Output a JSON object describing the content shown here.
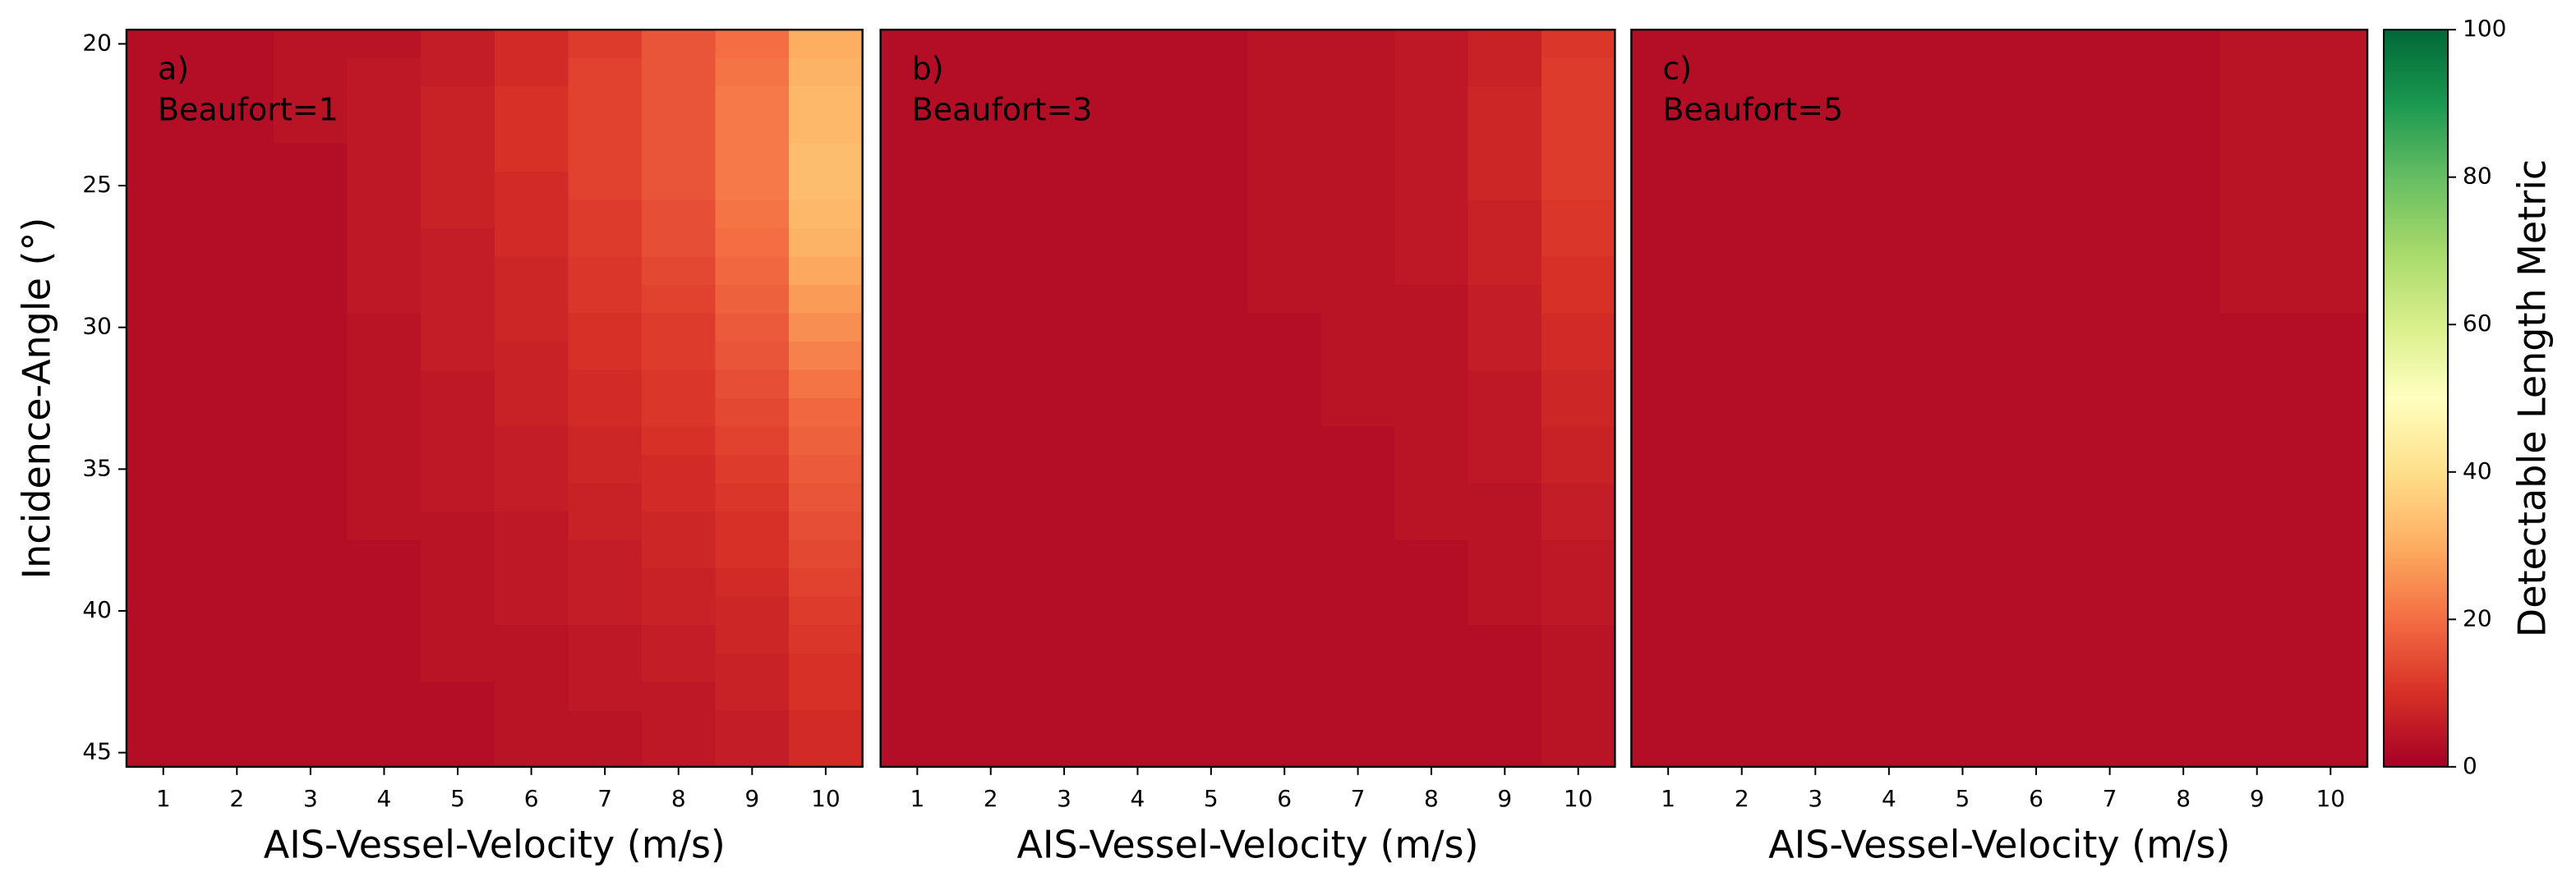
{
  "chart_data": [
    {
      "type": "heatmap",
      "label": "a)",
      "annotation": "Beaufort=1",
      "xlabel": "AIS-Vessel-Velocity (m/s)",
      "ylabel": "Incidence-Angle (°)",
      "x": [
        1,
        2,
        3,
        4,
        5,
        6,
        7,
        8,
        9,
        10
      ],
      "y": [
        20,
        21,
        22,
        23,
        24,
        25,
        26,
        27,
        28,
        29,
        30,
        31,
        32,
        33,
        34,
        35,
        36,
        37,
        38,
        39,
        40,
        41,
        42,
        43,
        44,
        45
      ],
      "xlim": [
        0.5,
        10.5
      ],
      "ylim": [
        45.5,
        19.5
      ],
      "xticks": [
        1,
        2,
        3,
        4,
        5,
        6,
        7,
        8,
        9,
        10
      ],
      "yticks": [
        20,
        25,
        30,
        35,
        40,
        45
      ],
      "z": [
        [
          3,
          3,
          4,
          4,
          6,
          9,
          12,
          16,
          20,
          30
        ],
        [
          3,
          3,
          4,
          5,
          6,
          9,
          13,
          16,
          21,
          31
        ],
        [
          3,
          3,
          4,
          5,
          7,
          10,
          13,
          16,
          22,
          32
        ],
        [
          3,
          3,
          4,
          5,
          7,
          10,
          13,
          16,
          22,
          32
        ],
        [
          3,
          3,
          3,
          5,
          7,
          10,
          13,
          16,
          22,
          33
        ],
        [
          3,
          3,
          3,
          5,
          7,
          9,
          13,
          16,
          22,
          33
        ],
        [
          3,
          3,
          3,
          5,
          7,
          9,
          12,
          15,
          21,
          32
        ],
        [
          3,
          3,
          3,
          5,
          6,
          9,
          12,
          15,
          20,
          31
        ],
        [
          3,
          3,
          3,
          5,
          6,
          8,
          11,
          14,
          19,
          29
        ],
        [
          3,
          3,
          3,
          5,
          6,
          8,
          11,
          13,
          18,
          27
        ],
        [
          3,
          3,
          3,
          4,
          6,
          8,
          10,
          12,
          17,
          25
        ],
        [
          3,
          3,
          3,
          4,
          6,
          7,
          10,
          12,
          16,
          23
        ],
        [
          3,
          3,
          3,
          4,
          5,
          7,
          9,
          11,
          15,
          21
        ],
        [
          3,
          3,
          3,
          4,
          5,
          7,
          9,
          11,
          14,
          19
        ],
        [
          3,
          3,
          3,
          4,
          5,
          6,
          8,
          10,
          13,
          18
        ],
        [
          3,
          3,
          3,
          4,
          5,
          6,
          8,
          9,
          12,
          17
        ],
        [
          3,
          3,
          3,
          4,
          5,
          6,
          7,
          9,
          11,
          16
        ],
        [
          3,
          3,
          3,
          4,
          4,
          5,
          7,
          8,
          10,
          15
        ],
        [
          3,
          3,
          3,
          3,
          4,
          5,
          6,
          8,
          10,
          14
        ],
        [
          3,
          3,
          3,
          3,
          4,
          5,
          6,
          7,
          9,
          13
        ],
        [
          3,
          3,
          3,
          3,
          4,
          5,
          6,
          7,
          8,
          12
        ],
        [
          3,
          3,
          3,
          3,
          4,
          4,
          5,
          6,
          8,
          11
        ],
        [
          3,
          3,
          3,
          3,
          4,
          4,
          5,
          6,
          7,
          10
        ],
        [
          3,
          3,
          3,
          3,
          3,
          4,
          5,
          5,
          7,
          10
        ],
        [
          3,
          3,
          3,
          3,
          3,
          4,
          4,
          5,
          6,
          9
        ],
        [
          3,
          3,
          3,
          3,
          3,
          4,
          4,
          5,
          6,
          9
        ]
      ]
    },
    {
      "type": "heatmap",
      "label": "b)",
      "annotation": "Beaufort=3",
      "xlabel": "AIS-Vessel-Velocity (m/s)",
      "x": [
        1,
        2,
        3,
        4,
        5,
        6,
        7,
        8,
        9,
        10
      ],
      "y": [
        20,
        21,
        22,
        23,
        24,
        25,
        26,
        27,
        28,
        29,
        30,
        31,
        32,
        33,
        34,
        35,
        36,
        37,
        38,
        39,
        40,
        41,
        42,
        43,
        44,
        45
      ],
      "xlim": [
        0.5,
        10.5
      ],
      "ylim": [
        45.5,
        19.5
      ],
      "xticks": [
        1,
        2,
        3,
        4,
        5,
        6,
        7,
        8,
        9,
        10
      ],
      "z": [
        [
          3,
          3,
          3,
          3,
          3,
          4,
          4,
          5,
          7,
          11
        ],
        [
          3,
          3,
          3,
          3,
          3,
          4,
          4,
          5,
          7,
          12
        ],
        [
          3,
          3,
          3,
          3,
          3,
          4,
          4,
          5,
          8,
          12
        ],
        [
          3,
          3,
          3,
          3,
          3,
          4,
          4,
          5,
          8,
          12
        ],
        [
          3,
          3,
          3,
          3,
          3,
          4,
          4,
          5,
          8,
          12
        ],
        [
          3,
          3,
          3,
          3,
          3,
          4,
          4,
          5,
          8,
          12
        ],
        [
          3,
          3,
          3,
          3,
          3,
          4,
          4,
          5,
          7,
          11
        ],
        [
          3,
          3,
          3,
          3,
          3,
          4,
          4,
          5,
          7,
          11
        ],
        [
          3,
          3,
          3,
          3,
          3,
          4,
          4,
          5,
          7,
          10
        ],
        [
          3,
          3,
          3,
          3,
          3,
          4,
          4,
          4,
          6,
          10
        ],
        [
          3,
          3,
          3,
          3,
          3,
          3,
          4,
          4,
          6,
          9
        ],
        [
          3,
          3,
          3,
          3,
          3,
          3,
          4,
          4,
          6,
          9
        ],
        [
          3,
          3,
          3,
          3,
          3,
          3,
          4,
          4,
          5,
          8
        ],
        [
          3,
          3,
          3,
          3,
          3,
          3,
          4,
          4,
          5,
          8
        ],
        [
          3,
          3,
          3,
          3,
          3,
          3,
          3,
          4,
          5,
          7
        ],
        [
          3,
          3,
          3,
          3,
          3,
          3,
          3,
          4,
          5,
          7
        ],
        [
          3,
          3,
          3,
          3,
          3,
          3,
          3,
          4,
          4,
          6
        ],
        [
          3,
          3,
          3,
          3,
          3,
          3,
          3,
          4,
          4,
          6
        ],
        [
          3,
          3,
          3,
          3,
          3,
          3,
          3,
          3,
          4,
          5
        ],
        [
          3,
          3,
          3,
          3,
          3,
          3,
          3,
          3,
          4,
          5
        ],
        [
          3,
          3,
          3,
          3,
          3,
          3,
          3,
          3,
          4,
          5
        ],
        [
          3,
          3,
          3,
          3,
          3,
          3,
          3,
          3,
          3,
          4
        ],
        [
          3,
          3,
          3,
          3,
          3,
          3,
          3,
          3,
          3,
          4
        ],
        [
          3,
          3,
          3,
          3,
          3,
          3,
          3,
          3,
          3,
          4
        ],
        [
          3,
          3,
          3,
          3,
          3,
          3,
          3,
          3,
          3,
          4
        ],
        [
          3,
          3,
          3,
          3,
          3,
          3,
          3,
          3,
          3,
          4
        ]
      ]
    },
    {
      "type": "heatmap",
      "label": "c)",
      "annotation": "Beaufort=5",
      "xlabel": "AIS-Vessel-Velocity (m/s)",
      "x": [
        1,
        2,
        3,
        4,
        5,
        6,
        7,
        8,
        9,
        10
      ],
      "y": [
        20,
        21,
        22,
        23,
        24,
        25,
        26,
        27,
        28,
        29,
        30,
        31,
        32,
        33,
        34,
        35,
        36,
        37,
        38,
        39,
        40,
        41,
        42,
        43,
        44,
        45
      ],
      "xlim": [
        0.5,
        10.5
      ],
      "ylim": [
        45.5,
        19.5
      ],
      "xticks": [
        1,
        2,
        3,
        4,
        5,
        6,
        7,
        8,
        9,
        10
      ],
      "z": [
        [
          3,
          3,
          3,
          3,
          3,
          3,
          3,
          3,
          4,
          4
        ],
        [
          3,
          3,
          3,
          3,
          3,
          3,
          3,
          3,
          4,
          4
        ],
        [
          3,
          3,
          3,
          3,
          3,
          3,
          3,
          3,
          4,
          4
        ],
        [
          3,
          3,
          3,
          3,
          3,
          3,
          3,
          3,
          4,
          4
        ],
        [
          3,
          3,
          3,
          3,
          3,
          3,
          3,
          3,
          4,
          4
        ],
        [
          3,
          3,
          3,
          3,
          3,
          3,
          3,
          3,
          4,
          4
        ],
        [
          3,
          3,
          3,
          3,
          3,
          3,
          3,
          3,
          4,
          4
        ],
        [
          3,
          3,
          3,
          3,
          3,
          3,
          3,
          3,
          4,
          4
        ],
        [
          3,
          3,
          3,
          3,
          3,
          3,
          3,
          3,
          4,
          4
        ],
        [
          3,
          3,
          3,
          3,
          3,
          3,
          3,
          3,
          4,
          4
        ],
        [
          3,
          3,
          3,
          3,
          3,
          3,
          3,
          3,
          3,
          3
        ],
        [
          3,
          3,
          3,
          3,
          3,
          3,
          3,
          3,
          3,
          3
        ],
        [
          3,
          3,
          3,
          3,
          3,
          3,
          3,
          3,
          3,
          3
        ],
        [
          3,
          3,
          3,
          3,
          3,
          3,
          3,
          3,
          3,
          3
        ],
        [
          3,
          3,
          3,
          3,
          3,
          3,
          3,
          3,
          3,
          3
        ],
        [
          3,
          3,
          3,
          3,
          3,
          3,
          3,
          3,
          3,
          3
        ],
        [
          3,
          3,
          3,
          3,
          3,
          3,
          3,
          3,
          3,
          3
        ],
        [
          3,
          3,
          3,
          3,
          3,
          3,
          3,
          3,
          3,
          3
        ],
        [
          3,
          3,
          3,
          3,
          3,
          3,
          3,
          3,
          3,
          3
        ],
        [
          3,
          3,
          3,
          3,
          3,
          3,
          3,
          3,
          3,
          3
        ],
        [
          3,
          3,
          3,
          3,
          3,
          3,
          3,
          3,
          3,
          3
        ],
        [
          3,
          3,
          3,
          3,
          3,
          3,
          3,
          3,
          3,
          3
        ],
        [
          3,
          3,
          3,
          3,
          3,
          3,
          3,
          3,
          3,
          3
        ],
        [
          3,
          3,
          3,
          3,
          3,
          3,
          3,
          3,
          3,
          3
        ],
        [
          3,
          3,
          3,
          3,
          3,
          3,
          3,
          3,
          3,
          3
        ],
        [
          3,
          3,
          3,
          3,
          3,
          3,
          3,
          3,
          3,
          3
        ]
      ]
    }
  ],
  "colorbar": {
    "label": "Detectable Length Metric",
    "colormap": "RdYlGn",
    "lim": [
      0,
      100
    ],
    "ticks": [
      0,
      20,
      40,
      60,
      80,
      100
    ]
  }
}
